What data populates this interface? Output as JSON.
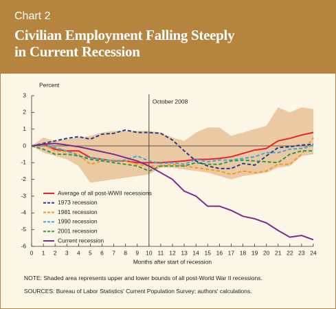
{
  "chart_data": {
    "type": "line",
    "chart_label": "Chart 2",
    "title": [
      "Civilian Employment Falling Steeply",
      "in Current Recession"
    ],
    "y_label": "Percent",
    "x_label": "Months after start of recession",
    "annotation": {
      "text": "October 2008",
      "x": 10
    },
    "note": "NOTE: Shaded area represents upper and lower bounds of all post-World War II recessions.",
    "source": "SOURCES: Bureau of Labor Statistics' Current Population Survey; authors' calculations.",
    "x": [
      0,
      1,
      2,
      3,
      4,
      5,
      6,
      7,
      8,
      9,
      10,
      11,
      12,
      13,
      14,
      15,
      16,
      17,
      18,
      19,
      20,
      21,
      22,
      23,
      24
    ],
    "xlim": [
      0,
      24
    ],
    "xticks": [
      0,
      1,
      2,
      3,
      4,
      5,
      6,
      7,
      8,
      9,
      10,
      11,
      12,
      13,
      14,
      15,
      16,
      17,
      18,
      19,
      20,
      21,
      22,
      23,
      24
    ],
    "ylim": [
      -6,
      3
    ],
    "yticks": [
      -6,
      -5,
      -4,
      -3,
      -2,
      -1,
      0,
      1,
      2,
      3
    ],
    "band": {
      "color": "#ebc9a2",
      "upper": [
        0,
        0.5,
        0.3,
        0.4,
        0.5,
        0.6,
        0.8,
        0.9,
        0.9,
        0.9,
        0.9,
        0.8,
        0.5,
        0.3,
        0.8,
        1.1,
        1.1,
        0.6,
        0.8,
        1.0,
        1.2,
        2.3,
        2.0,
        2.3,
        2.2
      ],
      "lower": [
        0,
        -0.4,
        -0.6,
        -0.8,
        -1.2,
        -2.2,
        -2.1,
        -2.0,
        -1.9,
        -1.8,
        -1.7,
        -1.3,
        -1.3,
        -1.4,
        -1.5,
        -1.6,
        -1.8,
        -2.0,
        -1.8,
        -1.7,
        -1.6,
        -1.3,
        -1.2,
        -0.6,
        -0.5
      ]
    },
    "series": [
      {
        "name": "Average of all post-WWII recessions",
        "color": "#e8232a",
        "dash": false,
        "values": [
          0,
          0.1,
          -0.2,
          -0.3,
          -0.3,
          -0.7,
          -0.8,
          -0.9,
          -0.9,
          -1.0,
          -1.0,
          -1.0,
          -0.95,
          -0.9,
          -0.8,
          -0.8,
          -0.75,
          -0.65,
          -0.45,
          -0.25,
          -0.15,
          0.3,
          0.45,
          0.65,
          0.8
        ]
      },
      {
        "name": "1973 recession",
        "color": "#1f3f8f",
        "dash": true,
        "values": [
          0,
          0.15,
          0.3,
          0.45,
          0.55,
          0.4,
          0.7,
          0.75,
          0.95,
          0.8,
          0.8,
          0.75,
          0.35,
          -0.3,
          -0.9,
          -1.2,
          -1.35,
          -1.35,
          -1.05,
          -1.15,
          -0.6,
          -0.1,
          -0.05,
          0.05,
          0.1
        ]
      },
      {
        "name": "1981 recession",
        "color": "#f39a1f",
        "dash": true,
        "values": [
          0,
          0.1,
          -0.3,
          -0.35,
          -0.5,
          -1.1,
          -0.9,
          -0.85,
          -0.9,
          -1.1,
          -1.2,
          -1.2,
          -1.1,
          -1.2,
          -1.3,
          -1.4,
          -1.5,
          -1.7,
          -1.5,
          -1.6,
          -1.5,
          -1.1,
          -1.1,
          -0.5,
          0.5
        ]
      },
      {
        "name": "1990 recession",
        "color": "#3aa8e0",
        "dash": true,
        "values": [
          0,
          0.1,
          -0.1,
          -0.3,
          -0.6,
          -0.7,
          -0.8,
          -0.9,
          -0.85,
          -0.6,
          -0.9,
          -1.05,
          -1.0,
          -1.1,
          -0.8,
          -0.95,
          -0.85,
          -0.85,
          -0.75,
          -0.65,
          -0.4,
          -0.4,
          -0.2,
          -0.15,
          0.05
        ]
      },
      {
        "name": "2001 recession",
        "color": "#2a9a48",
        "dash": true,
        "values": [
          0,
          -0.2,
          -0.5,
          -0.5,
          -0.6,
          -0.8,
          -0.9,
          -1.0,
          -1.1,
          -1.2,
          -1.5,
          -1.2,
          -1.2,
          -1.2,
          -1.0,
          -1.1,
          -1.1,
          -0.9,
          -0.85,
          -0.9,
          -0.95,
          -1.0,
          -0.5,
          -0.3,
          -0.3
        ]
      },
      {
        "name": "Current recession",
        "color": "#7b2a8e",
        "dash": false,
        "values": [
          0,
          0.1,
          0.15,
          0.05,
          -0.05,
          -0.2,
          -0.35,
          -0.5,
          -0.7,
          -0.9,
          -1.2,
          -1.6,
          -2.0,
          -2.7,
          -3.0,
          -3.6,
          -3.6,
          -3.85,
          -4.2,
          -4.35,
          -4.6,
          -5.05,
          -5.45,
          -5.35,
          -5.6
        ]
      }
    ]
  }
}
